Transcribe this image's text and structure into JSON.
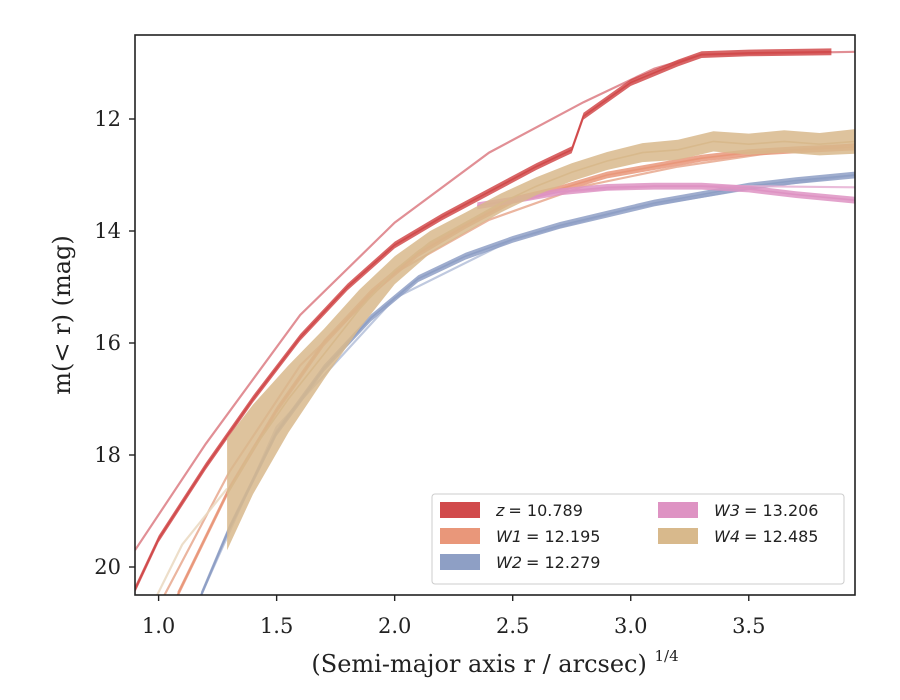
{
  "chart_data": {
    "type": "line",
    "xlabel": "(Semi-major axis r / arcsec)",
    "xlabel_sup": "1/4",
    "ylabel": "m(< r) (mag)",
    "xlim": [
      0.9,
      3.95
    ],
    "ylim": [
      20.5,
      10.5
    ],
    "y_inverted": true,
    "grid": false,
    "legend_position": "lower-right",
    "x_ticks": [
      1.0,
      1.5,
      2.0,
      2.5,
      3.0,
      3.5
    ],
    "x_tick_labels": [
      "1.0",
      "1.5",
      "2.0",
      "2.5",
      "3.0",
      "3.5"
    ],
    "y_ticks": [
      12,
      14,
      16,
      18,
      20
    ],
    "y_tick_labels": [
      "12",
      "14",
      "16",
      "18",
      "20"
    ],
    "series": [
      {
        "name": "z = 10.789",
        "legend_symbol": "z",
        "legend_value": "= 10.789",
        "color": "#d14a4b",
        "model_color": "#dc7b82",
        "x": [
          0.9,
          1.0,
          1.2,
          1.4,
          1.6,
          1.8,
          2.0,
          2.2,
          2.4,
          2.6,
          2.7,
          2.75,
          2.8,
          3.0,
          3.2,
          3.3,
          3.5,
          3.85
        ],
        "y": [
          20.4,
          19.5,
          18.2,
          17.0,
          15.9,
          15.0,
          14.25,
          13.75,
          13.3,
          12.85,
          12.65,
          12.55,
          11.95,
          11.35,
          11.0,
          10.85,
          10.82,
          10.8
        ],
        "model_x": [
          0.9,
          1.2,
          1.6,
          2.0,
          2.4,
          2.8,
          3.1,
          3.3,
          3.95
        ],
        "model_y": [
          19.7,
          17.8,
          15.5,
          13.85,
          12.6,
          11.7,
          11.1,
          10.85,
          10.8
        ]
      },
      {
        "name": "W1 = 12.195",
        "legend_symbol": "W1",
        "legend_value": "= 12.195",
        "color": "#e9977a",
        "model_color": "#e8a88e",
        "x": [
          1.08,
          1.3,
          1.5,
          1.7,
          1.9,
          2.1,
          2.3,
          2.5,
          2.7,
          2.9,
          3.1,
          3.3,
          3.5,
          3.7,
          3.95
        ],
        "y": [
          20.5,
          18.6,
          17.2,
          16.0,
          15.1,
          14.4,
          13.9,
          13.45,
          13.25,
          13.0,
          12.85,
          12.7,
          12.6,
          12.55,
          12.5
        ],
        "model_x": [
          0.9,
          1.3,
          1.6,
          2.0,
          2.4,
          2.8,
          3.2,
          3.6,
          3.95
        ],
        "model_y": [
          21.5,
          18.3,
          16.4,
          14.75,
          13.8,
          13.2,
          12.85,
          12.6,
          12.45
        ]
      },
      {
        "name": "W2 = 12.279",
        "legend_symbol": "W2",
        "legend_value": "= 12.279",
        "color": "#8e9fc5",
        "model_color": "#b4bfd9",
        "x": [
          1.18,
          1.3,
          1.5,
          1.7,
          1.9,
          2.1,
          2.3,
          2.5,
          2.7,
          2.9,
          3.1,
          3.3,
          3.5,
          3.7,
          3.95
        ],
        "y": [
          20.5,
          19.3,
          17.6,
          16.45,
          15.55,
          14.85,
          14.45,
          14.15,
          13.9,
          13.7,
          13.5,
          13.35,
          13.2,
          13.1,
          13.0
        ],
        "model_x": [
          1.18,
          1.5,
          2.0,
          2.5,
          3.0,
          3.5,
          3.95
        ],
        "model_y": [
          20.5,
          17.5,
          15.2,
          14.15,
          13.6,
          13.25,
          13.0
        ]
      },
      {
        "name": "W3 = 13.206",
        "legend_symbol": "W3",
        "legend_value": "= 13.206",
        "color": "#de93c3",
        "model_color": "#e6b0d3",
        "x": [
          2.35,
          2.5,
          2.7,
          2.9,
          3.1,
          3.3,
          3.5,
          3.7,
          3.95
        ],
        "y": [
          13.55,
          13.45,
          13.3,
          13.22,
          13.2,
          13.2,
          13.25,
          13.35,
          13.45
        ],
        "model_x": [
          2.35,
          2.7,
          3.1,
          3.5,
          3.95
        ],
        "model_y": [
          13.55,
          13.3,
          13.2,
          13.2,
          13.22
        ]
      },
      {
        "name": "W4 = 12.485",
        "legend_symbol": "W4",
        "legend_value": "= 12.485",
        "color": "#d8b98c",
        "model_color": "#ead8bf",
        "x": [
          1.29,
          1.4,
          1.55,
          1.7,
          1.85,
          2.0,
          2.15,
          2.3,
          2.45,
          2.6,
          2.75,
          2.9,
          3.05,
          3.2,
          3.35,
          3.5,
          3.65,
          3.8,
          3.95
        ],
        "y": [
          18.7,
          17.9,
          17.0,
          16.2,
          15.4,
          14.7,
          14.2,
          13.85,
          13.5,
          13.2,
          12.95,
          12.75,
          12.6,
          12.55,
          12.4,
          12.45,
          12.4,
          12.45,
          12.4
        ],
        "band_halfwidth": [
          1.0,
          0.8,
          0.6,
          0.45,
          0.35,
          0.25,
          0.2,
          0.18,
          0.17,
          0.16,
          0.16,
          0.16,
          0.17,
          0.18,
          0.18,
          0.19,
          0.2,
          0.2,
          0.22
        ],
        "model_x": [
          0.9,
          1.1,
          1.29
        ],
        "model_y": [
          21.3,
          19.6,
          18.6
        ]
      }
    ]
  }
}
